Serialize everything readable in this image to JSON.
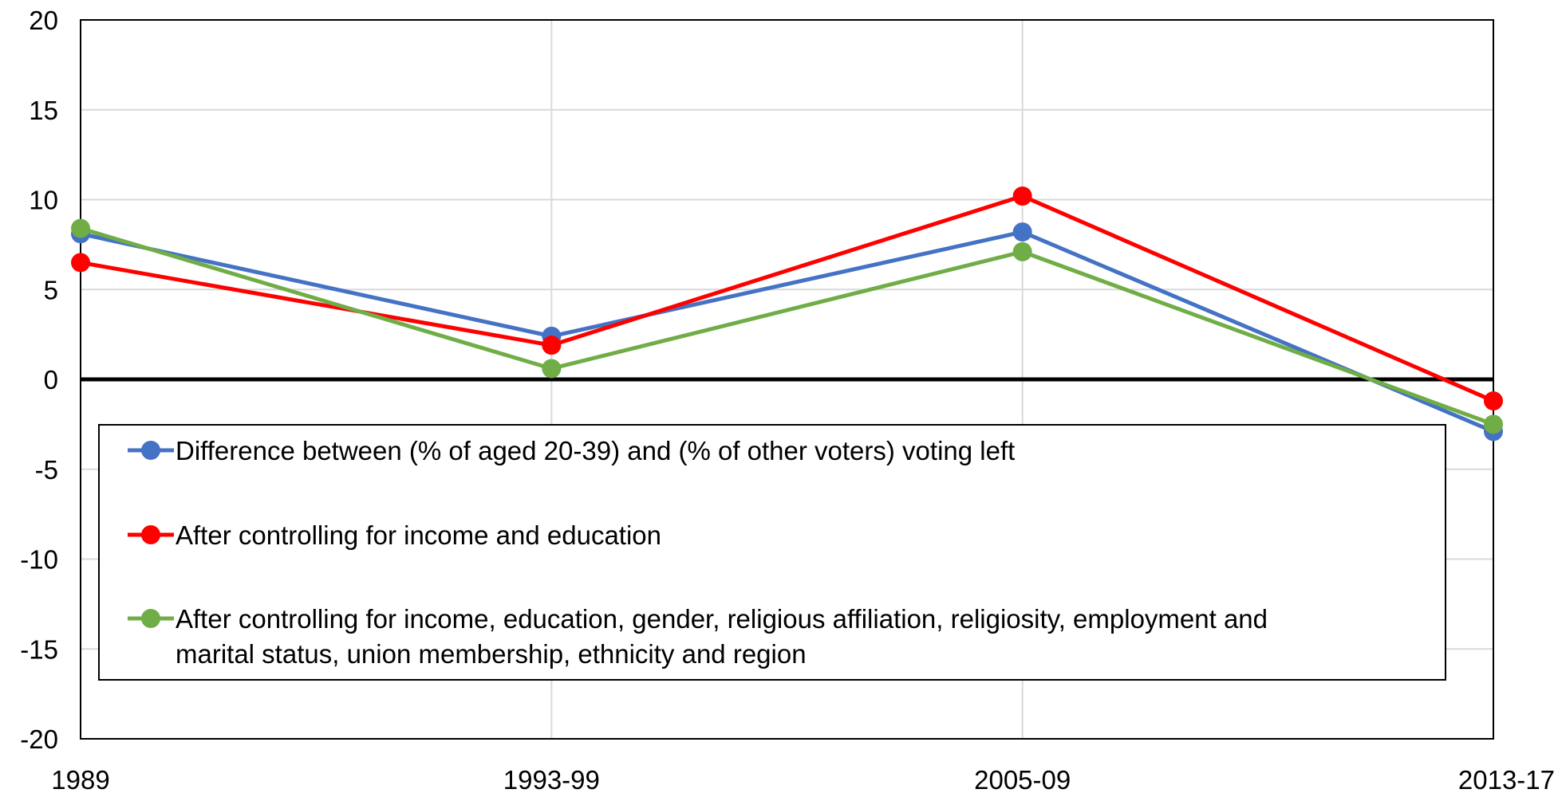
{
  "chart_data": {
    "type": "line",
    "title": "",
    "xlabel": "",
    "ylabel": "",
    "categories": [
      "1989",
      "1993-99",
      "2005-09",
      "2013-17"
    ],
    "ylim": [
      -20,
      20
    ],
    "yticks": [
      20,
      15,
      10,
      5,
      0,
      -5,
      -10,
      -15,
      -20
    ],
    "ytick_labels": [
      "20",
      "15",
      "10",
      "5",
      "0",
      "-5",
      "-10",
      "-15",
      "-20"
    ],
    "grid": "vertical",
    "zero_line": true,
    "legend_position": "lower-left inside plot",
    "series": [
      {
        "name": "Difference between (% of aged 20-39) and (% of other voters) voting left",
        "color": "#4472C4",
        "values": [
          8.1,
          2.4,
          8.2,
          -2.9
        ]
      },
      {
        "name": "After controlling for income and education",
        "color": "#FF0000",
        "values": [
          6.5,
          1.9,
          10.2,
          -1.2
        ]
      },
      {
        "name": "After controlling for income, education, gender, religious affiliation, religiosity, employment and marital status, union membership, ethnicity and region",
        "name_lines": [
          "After controlling for income, education, gender, religious affiliation, religiosity, employment and",
          "marital status, union membership, ethnicity and region"
        ],
        "color": "#70AD47",
        "values": [
          8.4,
          0.6,
          7.1,
          -2.5
        ]
      }
    ]
  }
}
